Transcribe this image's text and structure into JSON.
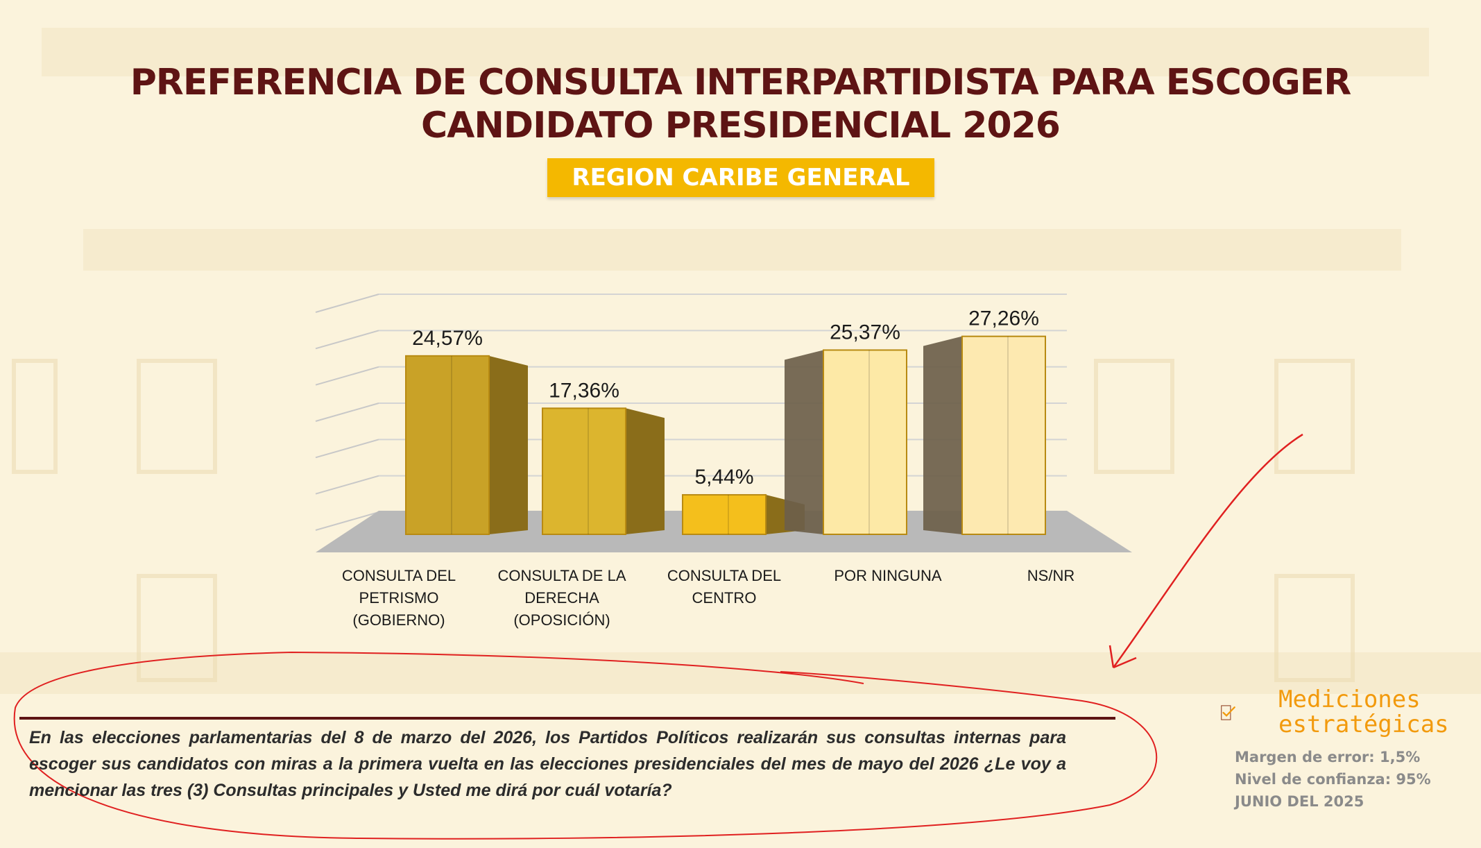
{
  "title": {
    "line1": "PREFERENCIA DE CONSULTA INTERPARTIDISTA PARA ESCOGER",
    "line2": "CANDIDATO PRESIDENCIAL 2026"
  },
  "region": "REGION CARIBE GENERAL",
  "chart_data": {
    "type": "bar",
    "style": "3d-column",
    "categories": [
      [
        "CONSULTA DEL",
        "PETRISMO",
        "(GOBIERNO)"
      ],
      [
        "CONSULTA DE LA",
        "DERECHA",
        "(OPOSICIÓN)"
      ],
      [
        "CONSULTA DEL",
        "CENTRO"
      ],
      [
        "POR NINGUNA"
      ],
      [
        "NS/NR"
      ]
    ],
    "values": [
      24.57,
      17.36,
      5.44,
      25.37,
      27.26
    ],
    "data_labels": [
      "24,57%",
      "17,36%",
      "5,44%",
      "25,37%",
      "27,26%"
    ],
    "ylim": [
      0,
      30
    ],
    "grid": true,
    "colors": [
      "#c9a227",
      "#dcb52e",
      "#f4bf1c",
      "#fde9a6",
      "#fde9b0"
    ]
  },
  "question": "En las elecciones parlamentarias del 8 de marzo del 2026, los Partidos Políticos realizarán sus consultas internas para escoger sus candidatos con miras a la primera vuelta en las elecciones presidenciales del mes de mayo del 2026 ¿Le voy a mencionar las tres (3) Consultas principales y Usted me dirá  por cuál votaría?",
  "logo": {
    "line1": "Mediciones",
    "line2": "estratégicas",
    "icon": "checkmark-box-icon",
    "color": "#f29a0d"
  },
  "meta": {
    "margin": "Margen de error: 1,5%",
    "confidence": "Nivel de confianza: 95%",
    "date": "JUNIO DEL 2025"
  }
}
